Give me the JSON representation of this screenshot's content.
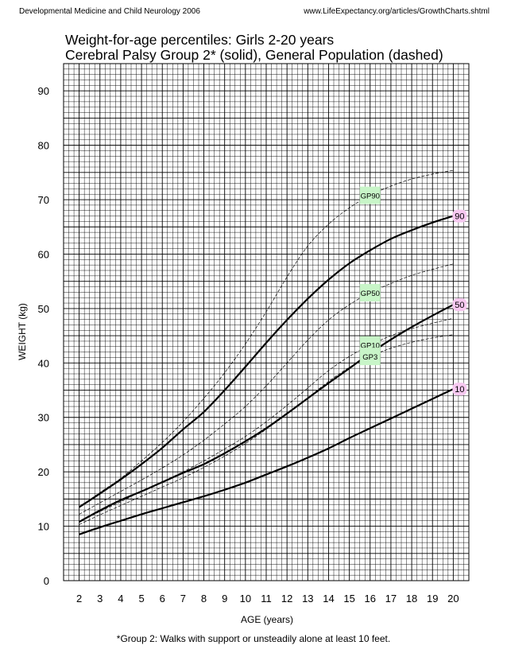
{
  "header": {
    "left": "Developmental Medicine and Child Neurology 2006",
    "right": "www.LifeExpectancy.org/articles/GrowthCharts.shtml"
  },
  "footnote": "*Group 2: Walks with support or unsteadily alone at least 10 feet.",
  "chart_data": {
    "type": "line",
    "title": "Weight-for-age percentiles: Girls 2-20 years",
    "subtitle": "Cerebral Palsy Group 2* (solid), General Population (dashed)",
    "xlabel": "AGE (years)",
    "ylabel": "WEIGHT (kg)",
    "xlim": [
      1.25,
      20.75
    ],
    "ylim": [
      0,
      95
    ],
    "x_ticks": [
      2,
      3,
      4,
      5,
      6,
      7,
      8,
      9,
      10,
      11,
      12,
      13,
      14,
      15,
      16,
      17,
      18,
      19,
      20
    ],
    "y_ticks": [
      0,
      10,
      20,
      30,
      40,
      50,
      60,
      70,
      80,
      90
    ],
    "grid": true,
    "x": [
      2,
      3,
      4,
      5,
      6,
      7,
      8,
      9,
      10,
      11,
      12,
      13,
      14,
      15,
      16,
      17,
      18,
      19,
      20
    ],
    "series": [
      {
        "name": "90",
        "style": "solid",
        "label_bg": "#f6c8f0",
        "values": [
          13.5,
          16.0,
          18.6,
          21.4,
          24.4,
          27.8,
          31.0,
          35.0,
          39.3,
          43.7,
          47.9,
          51.8,
          55.3,
          58.3,
          60.7,
          62.8,
          64.4,
          65.8,
          67.0
        ]
      },
      {
        "name": "50",
        "style": "solid",
        "label_bg": "#f6c8f0",
        "values": [
          10.8,
          12.9,
          14.8,
          16.4,
          18.1,
          19.8,
          21.4,
          23.4,
          25.6,
          28.0,
          30.7,
          33.5,
          36.3,
          39.0,
          41.8,
          44.3,
          46.6,
          48.7,
          50.7
        ]
      },
      {
        "name": "10",
        "style": "solid",
        "label_bg": "#f6c8f0",
        "values": [
          8.5,
          9.8,
          11.0,
          12.2,
          13.3,
          14.4,
          15.5,
          16.7,
          18.0,
          19.5,
          21.0,
          22.6,
          24.3,
          26.2,
          28.0,
          29.8,
          31.6,
          33.4,
          35.2
        ]
      },
      {
        "name": "GP90",
        "style": "dashed",
        "label_bg": "#c8f5c8",
        "values": [
          13.5,
          16.2,
          18.8,
          22.0,
          25.4,
          29.2,
          33.5,
          38.2,
          43.5,
          49.4,
          55.8,
          61.5,
          65.5,
          68.5,
          70.8,
          72.5,
          73.8,
          74.7,
          75.4
        ]
      },
      {
        "name": "GP50",
        "style": "dashed",
        "label_bg": "#c8f5c8",
        "values": [
          12.2,
          14.3,
          16.4,
          18.5,
          20.7,
          23.1,
          25.8,
          28.8,
          32.0,
          35.8,
          40.0,
          44.2,
          47.9,
          50.7,
          52.9,
          54.6,
          56.1,
          57.2,
          58.2
        ]
      },
      {
        "name": "GP10",
        "style": "dashed",
        "label_bg": "#c8f5c8",
        "values": [
          10.8,
          12.7,
          14.5,
          16.4,
          18.2,
          20.0,
          22.0,
          24.2,
          26.5,
          29.2,
          32.2,
          35.4,
          38.6,
          41.2,
          43.3,
          45.0,
          46.3,
          47.3,
          48.2
        ]
      },
      {
        "name": "GP3",
        "style": "dashed",
        "label_bg": "#c8f5c8",
        "values": [
          10.3,
          12.1,
          13.8,
          15.5,
          17.2,
          18.9,
          20.8,
          22.9,
          25.2,
          27.8,
          30.6,
          33.6,
          36.6,
          39.2,
          41.2,
          42.7,
          43.8,
          44.6,
          45.2
        ]
      }
    ]
  }
}
